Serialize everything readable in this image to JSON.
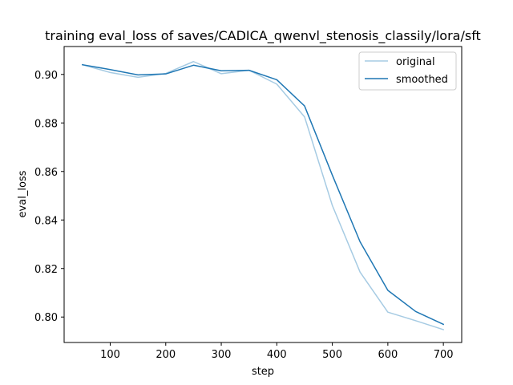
{
  "chart_data": {
    "type": "line",
    "title": "training eval_loss of saves/CADICA_qwenvl_stenosis_classily/lora/sft",
    "xlabel": "step",
    "ylabel": "eval_loss",
    "xlim": [
      17,
      733
    ],
    "ylim": [
      0.7895,
      0.9115
    ],
    "xticks": [
      100,
      200,
      300,
      400,
      500,
      600,
      700
    ],
    "yticks": [
      0.8,
      0.82,
      0.84,
      0.86,
      0.88,
      0.9
    ],
    "xtick_labels": [
      "100",
      "200",
      "300",
      "400",
      "500",
      "600",
      "700"
    ],
    "ytick_labels": [
      "0.80",
      "0.82",
      "0.84",
      "0.86",
      "0.88",
      "0.90"
    ],
    "grid": false,
    "legend_position": "top-right",
    "series": [
      {
        "name": "original",
        "color": "#a6cbe3",
        "x": [
          50,
          100,
          150,
          200,
          250,
          300,
          350,
          400,
          450,
          500,
          550,
          600,
          650,
          700
        ],
        "y": [
          0.904,
          0.9008,
          0.8988,
          0.9004,
          0.9053,
          0.9003,
          0.9017,
          0.896,
          0.8825,
          0.846,
          0.8185,
          0.802,
          0.7985,
          0.7948
        ]
      },
      {
        "name": "smoothed",
        "color": "#1f77b4",
        "x": [
          50,
          100,
          150,
          200,
          250,
          300,
          350,
          400,
          450,
          500,
          550,
          600,
          650,
          700
        ],
        "y": [
          0.904,
          0.902,
          0.8998,
          0.9002,
          0.9038,
          0.9015,
          0.9017,
          0.8978,
          0.887,
          0.8585,
          0.831,
          0.811,
          0.8023,
          0.797
        ]
      }
    ]
  }
}
